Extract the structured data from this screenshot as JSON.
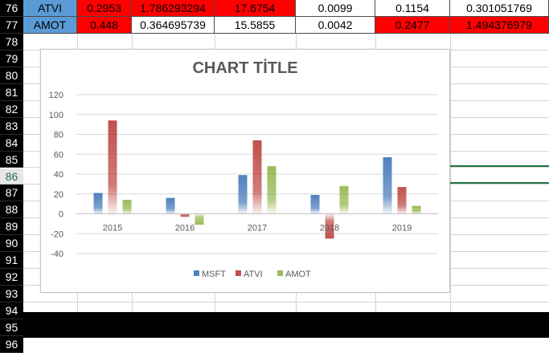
{
  "sheet": {
    "row_numbers": [
      "76",
      "77",
      "78",
      "79",
      "80",
      "81",
      "82",
      "83",
      "84",
      "85",
      "86",
      "87",
      "88",
      "89",
      "90",
      "91",
      "92",
      "93",
      "94",
      "95",
      "96"
    ],
    "selected_row": "86",
    "rows": [
      {
        "name": "ATVI",
        "cells": [
          "0.2953",
          "1.786293294",
          "17.6754",
          "0.0099",
          "0.1154",
          "0.301051769"
        ],
        "fills": [
          "#ff0000",
          "#ff0000",
          "#ff0000",
          "#ffffff",
          "#ffffff",
          "#ffffff"
        ]
      },
      {
        "name": "AMOT",
        "cells": [
          "0.448",
          "0.364695739",
          "15.5855",
          "0.0042",
          "0.2477",
          "1.494376979"
        ],
        "fills": [
          "#ff0000",
          "#ffffff",
          "#ffffff",
          "#ffffff",
          "#ff0000",
          "#ff0000"
        ]
      }
    ],
    "label_fill": "#5b9bd5",
    "selection_color": "#217346"
  },
  "chart_data": {
    "type": "bar",
    "title": "CHART TİTLE",
    "categories": [
      "2015",
      "2016",
      "2017",
      "2018",
      "2019"
    ],
    "series": [
      {
        "name": "MSFT",
        "color": "#4f81bd",
        "values": [
          21,
          16,
          39,
          19,
          57
        ]
      },
      {
        "name": "ATVI",
        "color": "#c0504d",
        "values": [
          94,
          -3,
          74,
          -25,
          27
        ]
      },
      {
        "name": "AMOT",
        "color": "#9bbb59",
        "values": [
          14,
          -11,
          48,
          28,
          8
        ]
      }
    ],
    "ylim": [
      -40,
      120
    ],
    "yticks": [
      120,
      100,
      80,
      60,
      40,
      20,
      0,
      -20,
      -40
    ],
    "grid": true,
    "legend": "bottom"
  }
}
